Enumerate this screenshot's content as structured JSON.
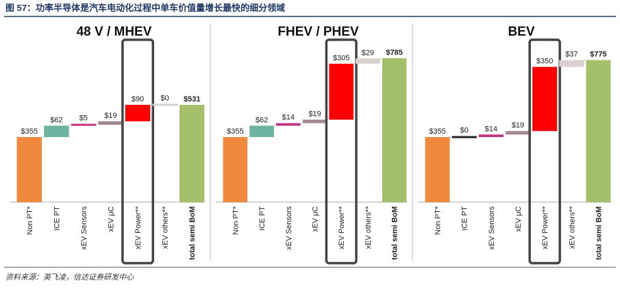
{
  "header": {
    "title": "图 57：功率半导体是汽车电动化过程中单车价值量增长最快的细分领域"
  },
  "chart_data": [
    {
      "type": "waterfall",
      "title": "48 V / MHEV",
      "categories": [
        "Non PT*",
        "ICE PT",
        "xEV Sensors",
        "xEV µC",
        "xEV Power**",
        "xEV others**",
        "total semi BoM"
      ],
      "values": [
        355,
        62,
        5,
        19,
        90,
        0,
        531
      ],
      "value_labels": [
        "$355",
        "$62",
        "$5",
        "$19",
        "$90",
        "$0",
        "$531"
      ],
      "colors": [
        "#ef8a3c",
        "#6db3a0",
        "#c2317f",
        "#a58890",
        "#ff0000",
        "#d9d0d0",
        "#a5c06a"
      ]
    },
    {
      "type": "waterfall",
      "title": "FHEV / PHEV",
      "categories": [
        "Non PT*",
        "ICE PT",
        "xEV Sensors",
        "xEV µC",
        "xEV Power**",
        "xEV others**",
        "total semi BoM"
      ],
      "values": [
        355,
        62,
        14,
        19,
        305,
        29,
        785
      ],
      "value_labels": [
        "$355",
        "$62",
        "$14",
        "$19",
        "$305",
        "$29",
        "$785"
      ],
      "colors": [
        "#ef8a3c",
        "#6db3a0",
        "#c2317f",
        "#a58890",
        "#ff0000",
        "#d9d0d0",
        "#a5c06a"
      ]
    },
    {
      "type": "waterfall",
      "title": "BEV",
      "categories": [
        "Non PT*",
        "ICE PT",
        "xEV Sensors",
        "xEV µC",
        "xEV Power**",
        "xEV others**",
        "total semi BoM"
      ],
      "values": [
        355,
        0,
        14,
        19,
        350,
        37,
        775
      ],
      "value_labels": [
        "$355",
        "$0",
        "$14",
        "$19",
        "$350",
        "$37",
        "$775"
      ],
      "colors": [
        "#ef8a3c",
        "#222222",
        "#c2317f",
        "#a58890",
        "#ff0000",
        "#d9d0d0",
        "#a5c06a"
      ]
    }
  ],
  "source": "资料来源：英飞凌，信达证券研发中心"
}
